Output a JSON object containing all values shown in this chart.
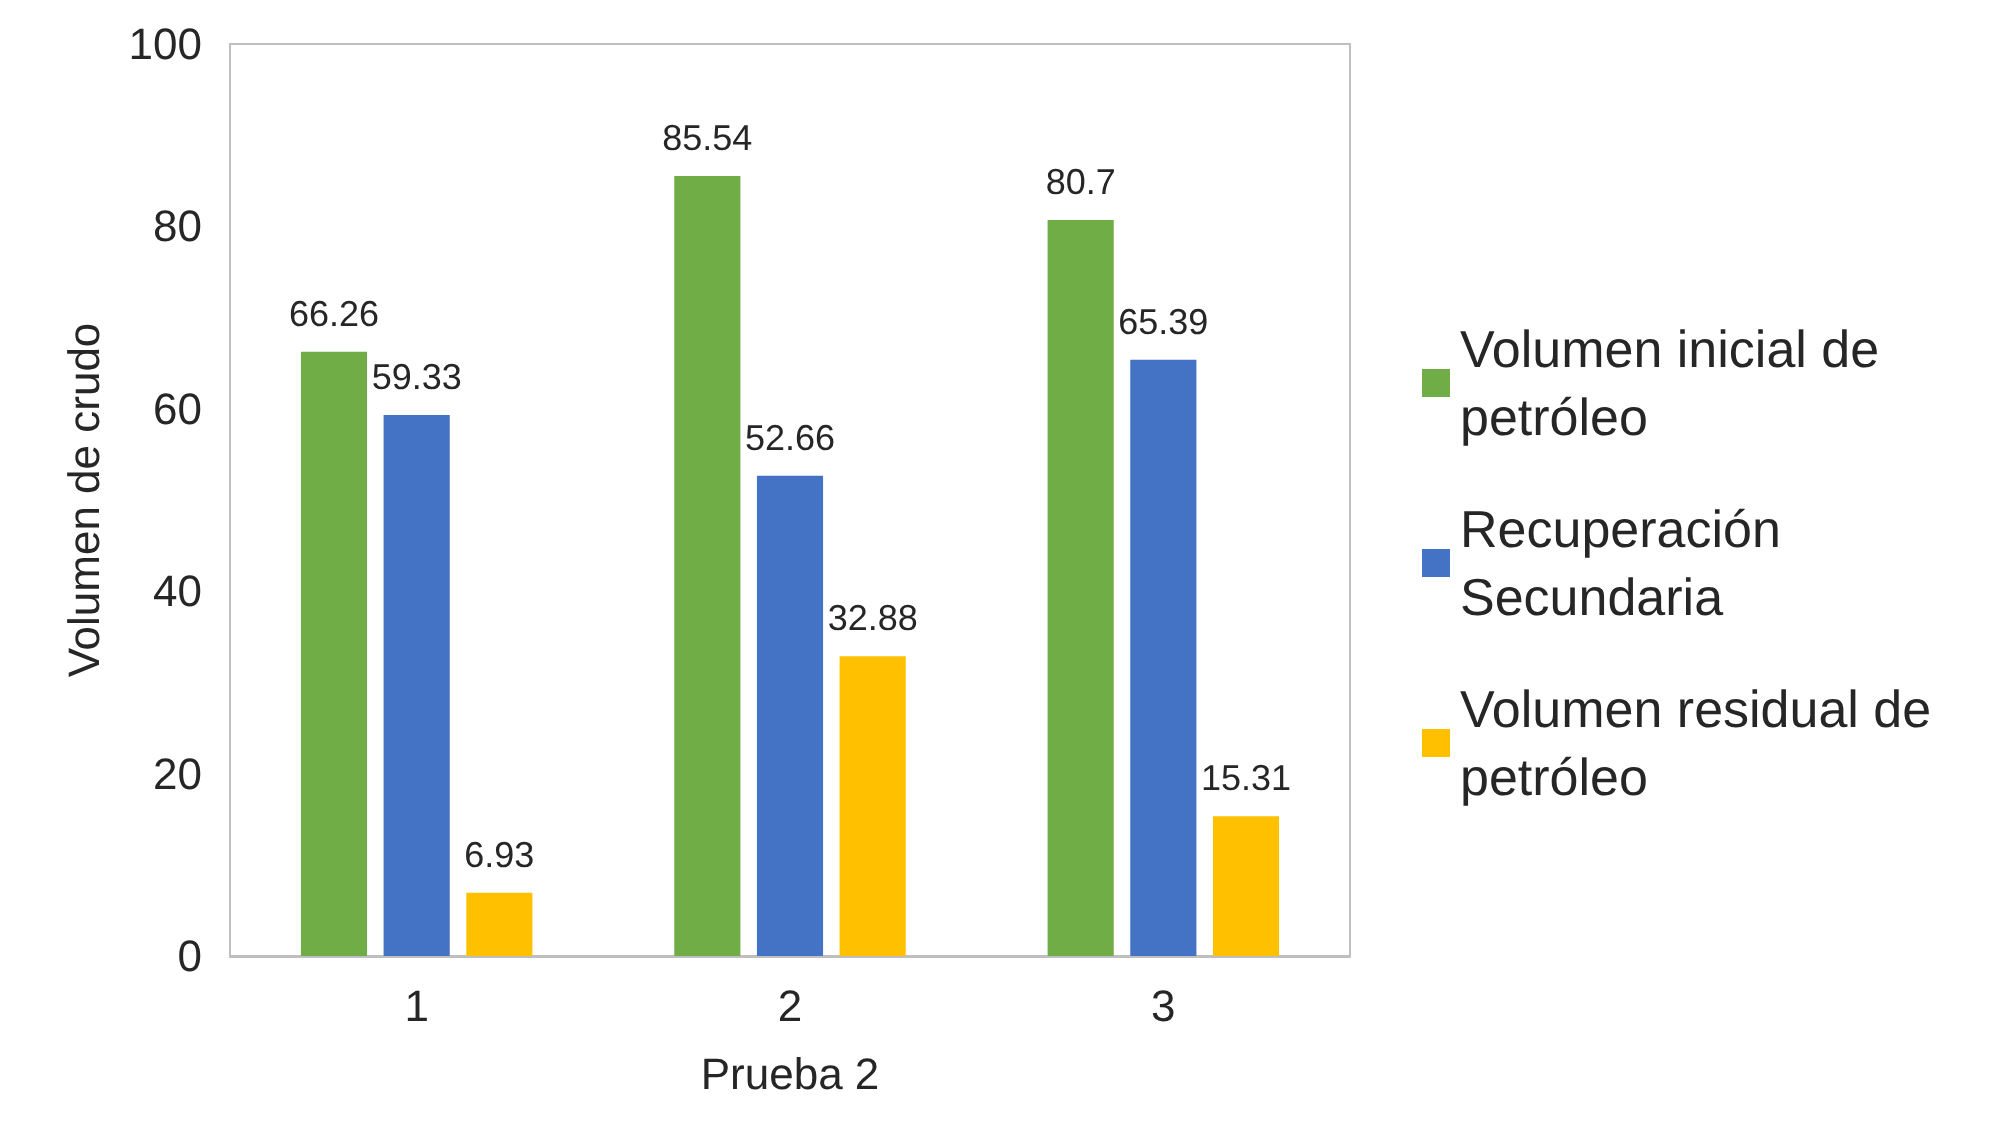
{
  "chart_data": {
    "type": "bar",
    "xlabel": "Prueba 2",
    "ylabel": "Volumen de crudo",
    "categories": [
      "1",
      "2",
      "3"
    ],
    "series": [
      {
        "name": "Volumen inicial de petróleo",
        "color": "#70ad47",
        "values": [
          66.26,
          85.54,
          80.7
        ]
      },
      {
        "name": "Recuperación Secundaria",
        "color": "#4472c4",
        "values": [
          59.33,
          52.66,
          65.39
        ]
      },
      {
        "name": "Volumen residual de petróleo",
        "color": "#ffc000",
        "values": [
          6.93,
          32.88,
          15.31
        ]
      }
    ],
    "ylim": [
      0,
      100
    ],
    "yticks": [
      0,
      20,
      40,
      60,
      80,
      100
    ],
    "grid": false,
    "legend": "right",
    "data_labels": true
  }
}
